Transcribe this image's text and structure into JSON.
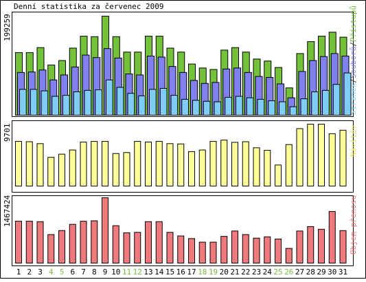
{
  "chart_data": {
    "type": "bar",
    "title": "Denní statistika za červenec 2009",
    "categories": [
      "1",
      "2",
      "3",
      "4",
      "5",
      "6",
      "7",
      "8",
      "9",
      "10",
      "11",
      "12",
      "13",
      "14",
      "15",
      "16",
      "17",
      "18",
      "19",
      "20",
      "21",
      "22",
      "23",
      "24",
      "25",
      "26",
      "27",
      "28",
      "29",
      "30",
      "31"
    ],
    "weekend_days": [
      "4",
      "5",
      "11",
      "12",
      "18",
      "19",
      "25",
      "26"
    ],
    "colors": {
      "pristupu": "#74c13a",
      "souboru": "#8080ee",
      "stranek": "#7fcdf7",
      "navstev": "#ffff99",
      "objem": "#ee7a7e",
      "weekend_label": "#77bb3d",
      "frame": "#000000",
      "legend_sep": "#333333"
    },
    "charts": [
      {
        "id": "traffic",
        "max_label": "199259",
        "ylim": [
          0,
          199259
        ],
        "legend": [
          "Stránek",
          "Souborů",
          "Přístupů"
        ],
        "series": [
          {
            "name": "Přístupů",
            "values": [
              126000,
              126000,
              136000,
              101000,
              110000,
              135000,
              159000,
              158000,
              199259,
              158000,
              127000,
              127000,
              159000,
              159000,
              135000,
              127000,
              103000,
              95000,
              92000,
              131000,
              136000,
              127000,
              113000,
              109000,
              96000,
              55000,
              124000,
              148000,
              159000,
              167000,
              157000
            ]
          },
          {
            "name": "Souborů",
            "values": [
              86000,
              87000,
              91000,
              71000,
              81000,
              97000,
              121000,
              116000,
              134000,
              115000,
              83000,
              81000,
              119000,
              117000,
              98000,
              86000,
              70000,
              64000,
              66000,
              93000,
              95000,
              86000,
              78000,
              76000,
              63000,
              35000,
              88000,
              110000,
              118000,
              124000,
              119000
            ]
          },
          {
            "name": "Stránek",
            "values": [
              52000,
              52000,
              49000,
              38000,
              40000,
              47000,
              50000,
              51000,
              71000,
              56000,
              44000,
              39000,
              52000,
              54000,
              40000,
              32000,
              30000,
              28000,
              27000,
              36000,
              38000,
              35000,
              32000,
              29000,
              27000,
              17000,
              33000,
              47000,
              50000,
              62000,
              85000
            ]
          }
        ]
      },
      {
        "id": "visits",
        "max_label": "9701",
        "ylim": [
          0,
          9701
        ],
        "legend": [
          "Návštěv"
        ],
        "series": [
          {
            "name": "Návštěv",
            "values": [
              7000,
              6950,
              6650,
              4500,
              5000,
              5650,
              6900,
              7000,
              7000,
              5100,
              5250,
              7000,
              6900,
              7000,
              6650,
              6600,
              5400,
              5650,
              7000,
              7200,
              6850,
              6950,
              6000,
              5600,
              3300,
              6500,
              9000,
              9701,
              9701,
              8200,
              8750
            ]
          }
        ]
      },
      {
        "id": "volume",
        "max_label": "1467424",
        "ylim": [
          0,
          1467424
        ],
        "legend": [
          "Objem přenosu"
        ],
        "series": [
          {
            "name": "Objem přenosu",
            "values": [
              940000,
              940000,
              930000,
              640000,
              730000,
              870000,
              940000,
              950000,
              1467424,
              840000,
              680000,
              690000,
              930000,
              930000,
              690000,
              610000,
              550000,
              470000,
              470000,
              600000,
              720000,
              640000,
              560000,
              590000,
              540000,
              330000,
              720000,
              820000,
              760000,
              1160000,
              730000
            ]
          }
        ]
      }
    ]
  }
}
